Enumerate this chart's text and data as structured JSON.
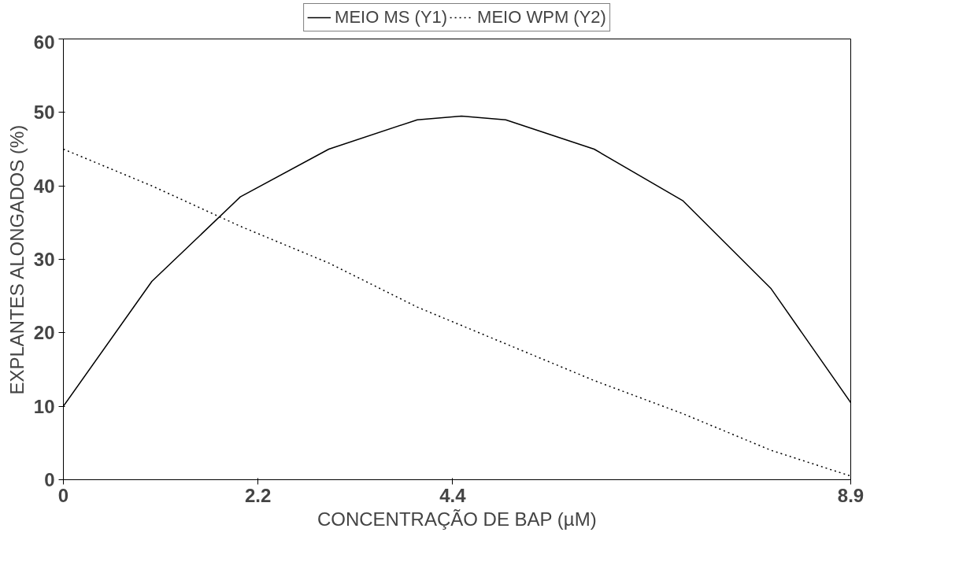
{
  "chart_data": {
    "type": "line",
    "xlabel": "CONCENTRAÇÃO DE BAP (µM)",
    "ylabel": "EXPLANTES ALONGADOS (%)",
    "xlim": [
      0,
      8.9
    ],
    "xticks": [
      0,
      2.2,
      4.4,
      8.9
    ],
    "ylim": [
      0,
      60
    ],
    "yticks": [
      0,
      10,
      20,
      30,
      40,
      50,
      60
    ],
    "grid": false,
    "legend": "top",
    "marker": "none",
    "series": [
      {
        "name": "MEIO MS (Y1)",
        "color": "#000000",
        "line_style": "solid",
        "x": [
          0,
          1,
          2,
          3,
          4,
          4.5,
          5,
          6,
          7,
          8,
          8.9
        ],
        "values": [
          10,
          27,
          38.5,
          45,
          49,
          49.5,
          49,
          45,
          38,
          26,
          10.5
        ]
      },
      {
        "name": "MEIO WPM (Y2)",
        "color": "#000000",
        "line_style": "dotted",
        "x": [
          0,
          1,
          2,
          3,
          4,
          5,
          6,
          7,
          8,
          8.9
        ],
        "values": [
          45,
          40,
          34.5,
          29.5,
          23.5,
          18.5,
          13.5,
          9,
          4,
          0.5
        ]
      }
    ]
  }
}
